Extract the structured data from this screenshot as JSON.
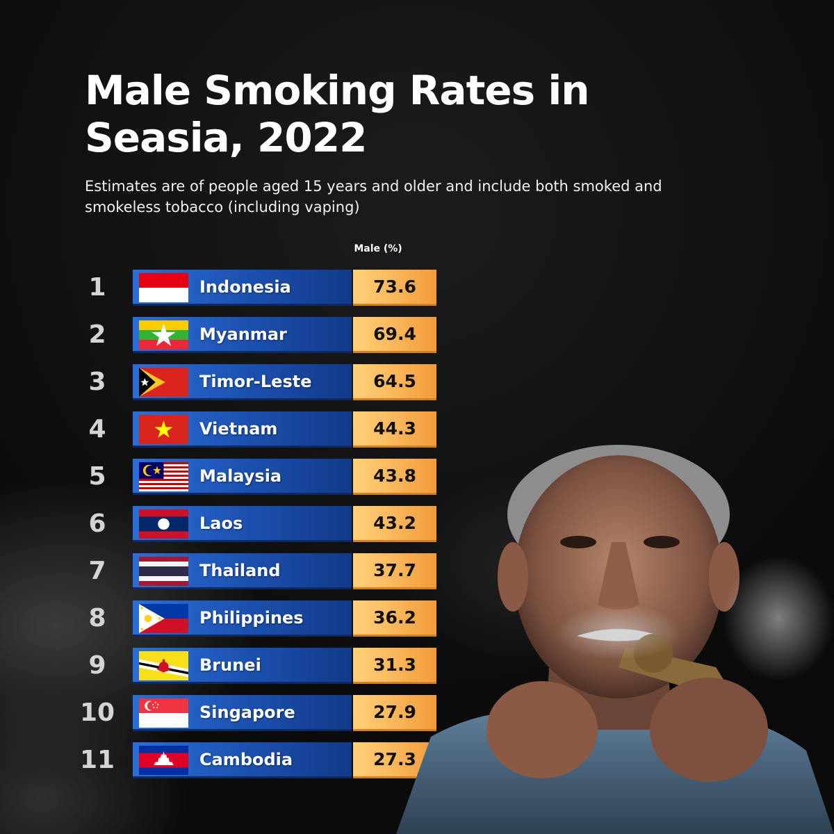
{
  "header": {
    "title": "Male Smoking Rates in Seasia, 2022",
    "subtitle": "Estimates are of people aged 15 years and older and include both smoked and smokeless tobacco (including vaping)"
  },
  "chart_data": {
    "type": "table",
    "title": "Male Smoking Rates in Seasia, 2022",
    "subtitle": "Estimates are of people aged 15 years and older and include both smoked and smokeless tobacco (including vaping)",
    "value_header": "Male (%)",
    "rows": [
      {
        "rank": "1",
        "country": "Indonesia",
        "value": "73.6",
        "flag": "indonesia-flag"
      },
      {
        "rank": "2",
        "country": "Myanmar",
        "value": "69.4",
        "flag": "myanmar-flag"
      },
      {
        "rank": "3",
        "country": "Timor-Leste",
        "value": "64.5",
        "flag": "timor-leste-flag"
      },
      {
        "rank": "4",
        "country": "Vietnam",
        "value": "44.3",
        "flag": "vietnam-flag"
      },
      {
        "rank": "5",
        "country": "Malaysia",
        "value": "43.8",
        "flag": "malaysia-flag"
      },
      {
        "rank": "6",
        "country": "Laos",
        "value": "43.2",
        "flag": "laos-flag"
      },
      {
        "rank": "7",
        "country": "Thailand",
        "value": "37.7",
        "flag": "thailand-flag"
      },
      {
        "rank": "8",
        "country": "Philippines",
        "value": "36.2",
        "flag": "philippines-flag"
      },
      {
        "rank": "9",
        "country": "Brunei",
        "value": "31.3",
        "flag": "brunei-flag"
      },
      {
        "rank": "10",
        "country": "Singapore",
        "value": "27.9",
        "flag": "singapore-flag"
      },
      {
        "rank": "11",
        "country": "Cambodia",
        "value": "27.3",
        "flag": "cambodia-flag"
      }
    ]
  },
  "colors": {
    "name_box": "#1b4fae",
    "value_box": "#f8b457",
    "background": "#0b0b0b"
  },
  "image": {
    "icon": "man-smoking-pipe-photo"
  }
}
